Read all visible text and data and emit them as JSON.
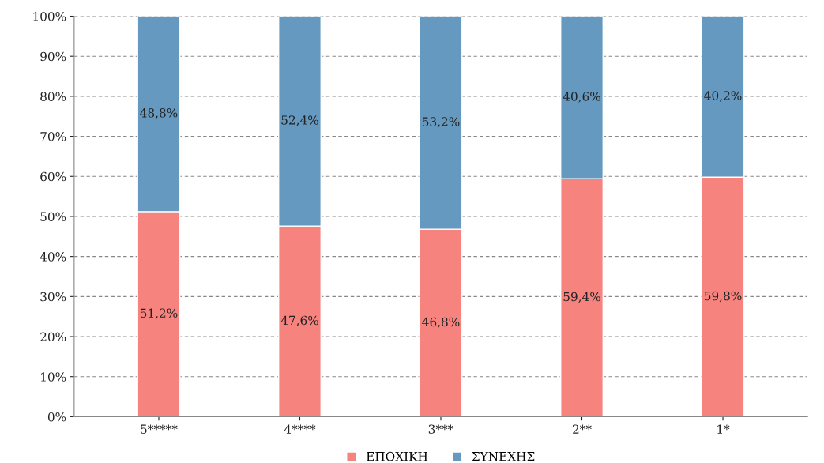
{
  "chart_data": {
    "type": "bar",
    "stacked": true,
    "categories": [
      "5*****",
      "4****",
      "3***",
      "2**",
      "1*"
    ],
    "series": [
      {
        "name": "ΕΠΟΧΙΚΗ",
        "color": "#f7837f",
        "values": [
          51.2,
          47.6,
          46.8,
          59.4,
          59.8
        ],
        "value_labels": [
          "51,2%",
          "47,6%",
          "46,8%",
          "59,4%",
          "59,8%"
        ]
      },
      {
        "name": "ΣΥΝΕΧΗΣ",
        "color": "#6599bf",
        "values": [
          48.8,
          52.4,
          53.2,
          40.6,
          40.2
        ],
        "value_labels": [
          "48,8%",
          "52,4%",
          "53,2%",
          "40,6%",
          "40,2%"
        ]
      }
    ],
    "ylim": [
      0,
      100
    ],
    "yticks": [
      {
        "value": 0,
        "label": "0%"
      },
      {
        "value": 10,
        "label": "10%"
      },
      {
        "value": 20,
        "label": "20%"
      },
      {
        "value": 30,
        "label": "30%"
      },
      {
        "value": 40,
        "label": "40%"
      },
      {
        "value": 50,
        "label": "50%"
      },
      {
        "value": 60,
        "label": "60%"
      },
      {
        "value": 70,
        "label": "70%"
      },
      {
        "value": 80,
        "label": "80%"
      },
      {
        "value": 90,
        "label": "90%"
      },
      {
        "value": 100,
        "label": "100%"
      }
    ],
    "grid": "y",
    "legend": "bottom"
  }
}
